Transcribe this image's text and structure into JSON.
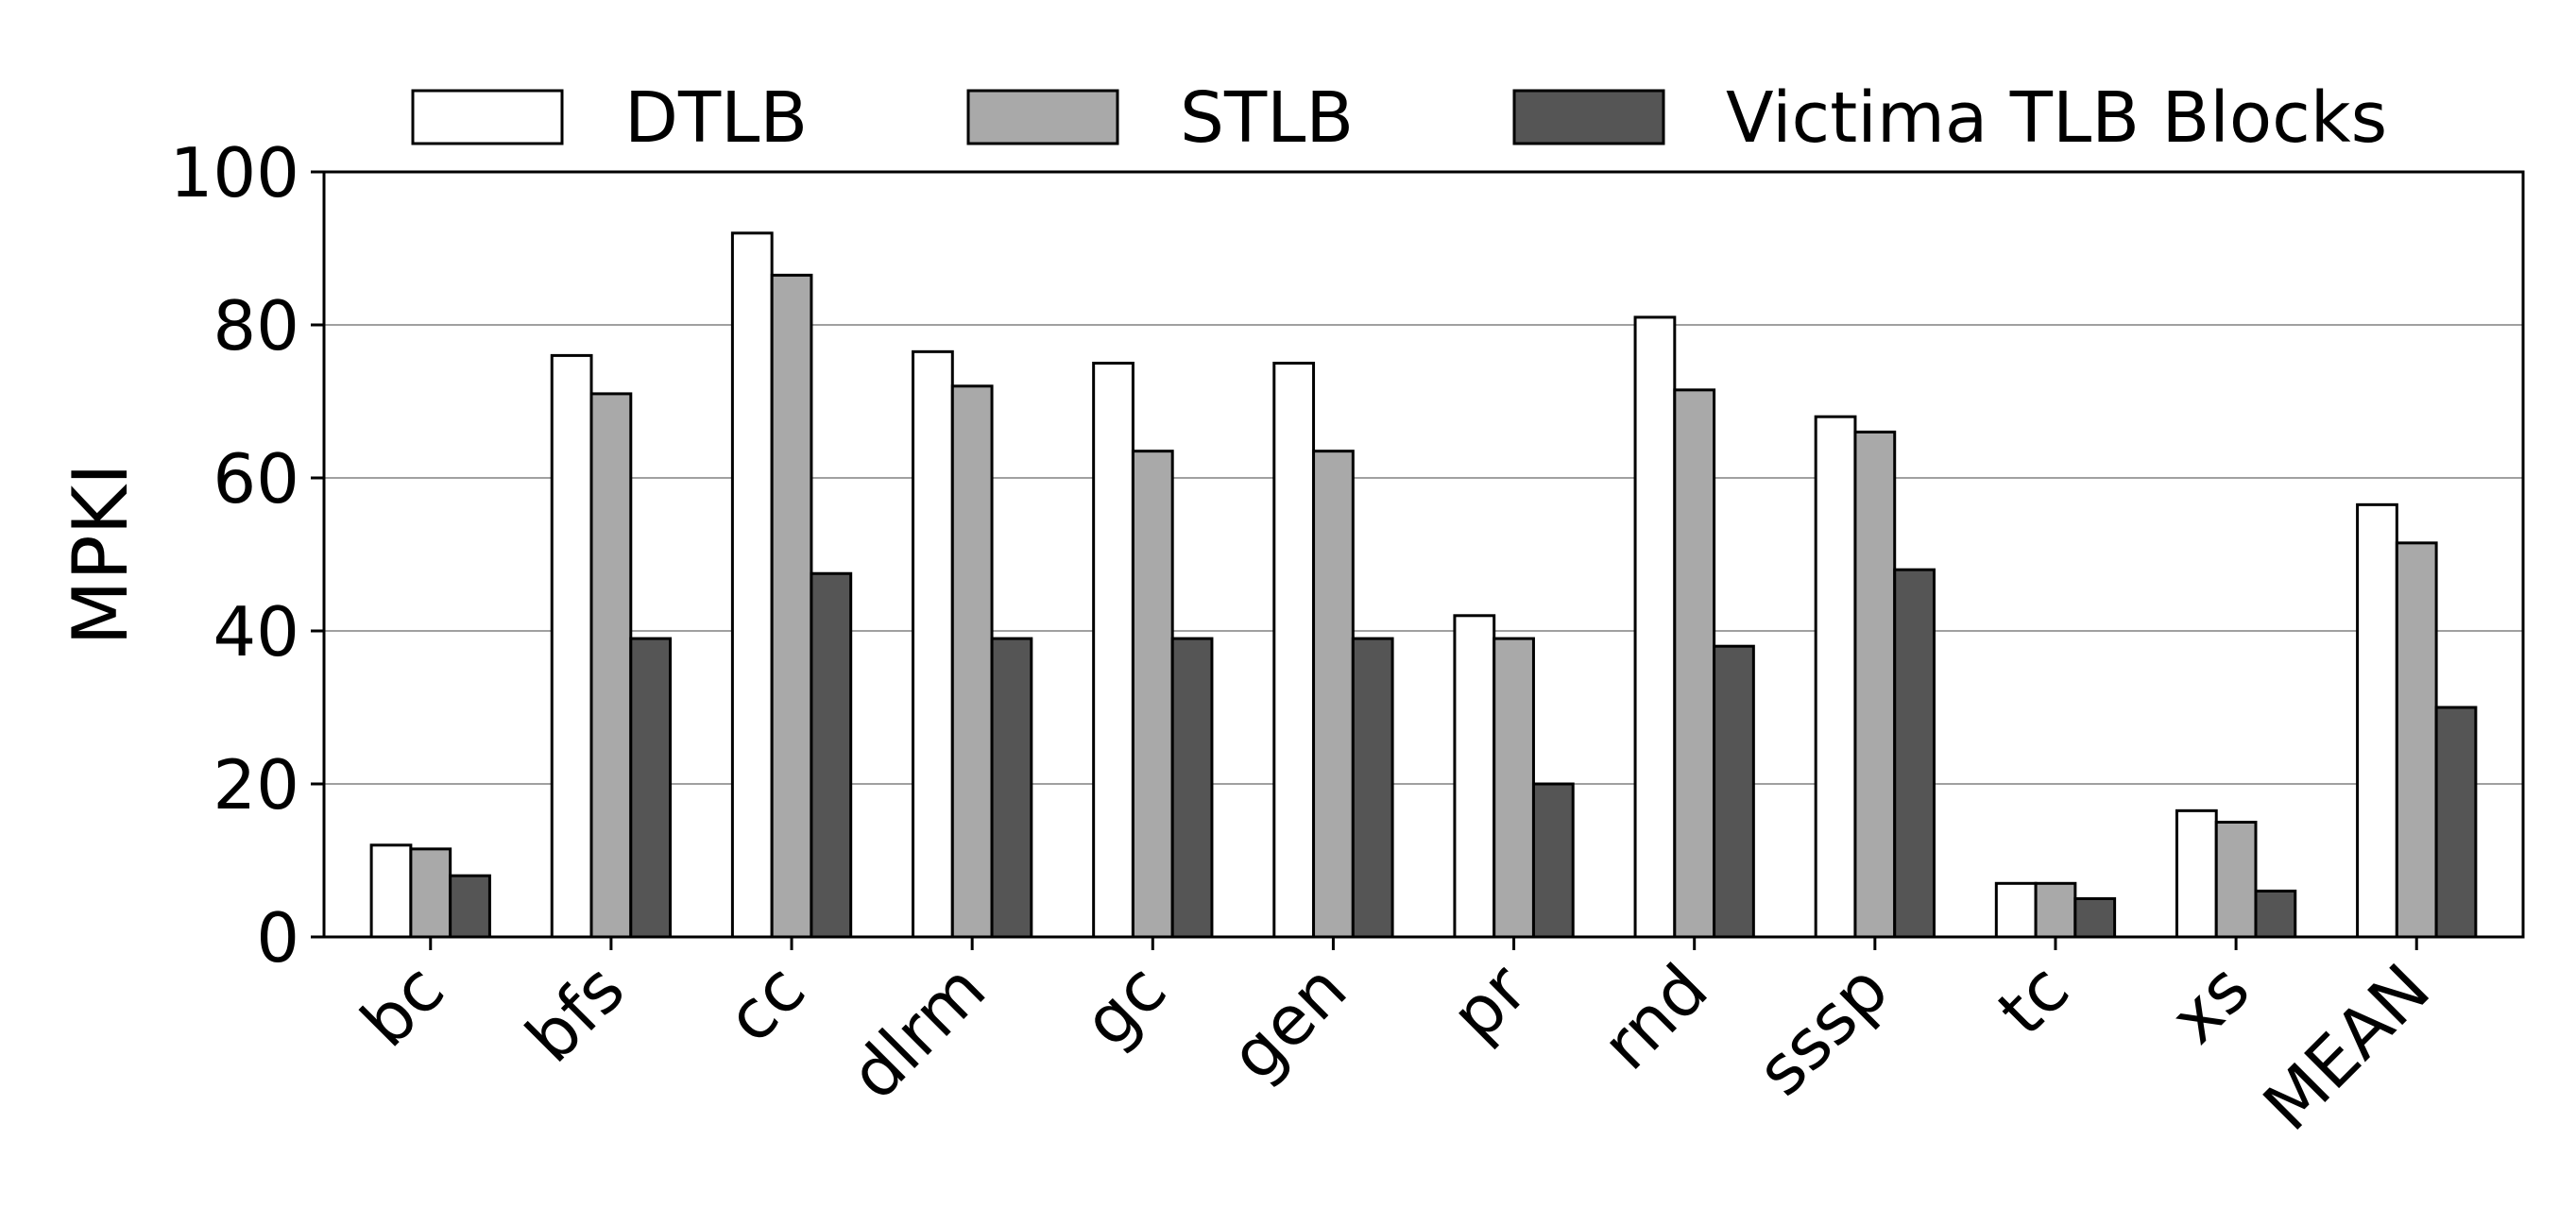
{
  "chart_data": {
    "type": "bar",
    "title": "",
    "xlabel": "",
    "ylabel": "MPKI",
    "ylim": [
      0,
      100
    ],
    "yticks": [
      0,
      20,
      40,
      60,
      80,
      100
    ],
    "grid": "horizontal",
    "legend_position": "top",
    "categories": [
      "bc",
      "bfs",
      "cc",
      "dlrm",
      "gc",
      "gen",
      "pr",
      "rnd",
      "sssp",
      "tc",
      "xs",
      "MEAN"
    ],
    "series": [
      {
        "name": "DTLB",
        "color": "#ffffff",
        "values": [
          12,
          76,
          92,
          76.5,
          75,
          75,
          42,
          81,
          68,
          7,
          16.5,
          56.5
        ]
      },
      {
        "name": "STLB",
        "color": "#a9a9a9",
        "values": [
          11.5,
          71,
          86.5,
          72,
          63.5,
          63.5,
          39,
          71.5,
          66,
          7,
          15,
          51.5
        ]
      },
      {
        "name": "Victima TLB Blocks",
        "color": "#555555",
        "values": [
          8,
          39,
          47.5,
          39,
          39,
          39,
          20,
          38,
          48,
          5,
          6,
          30
        ]
      }
    ]
  }
}
